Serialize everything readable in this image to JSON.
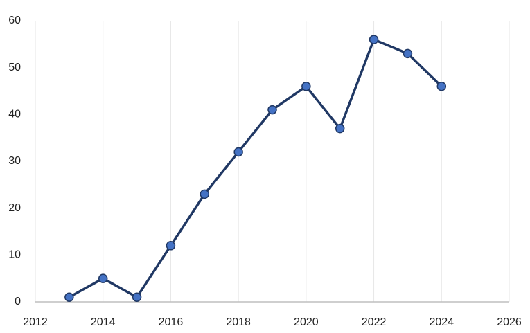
{
  "chart_data": {
    "type": "line",
    "x": [
      2013,
      2014,
      2015,
      2016,
      2017,
      2018,
      2019,
      2020,
      2021,
      2022,
      2023,
      2024
    ],
    "values": [
      1,
      5,
      1,
      12,
      23,
      32,
      41,
      46,
      37,
      56,
      53,
      46
    ],
    "color": "#203864",
    "marker_color": "#4472c4",
    "xlim": [
      2012,
      2026
    ],
    "xticks": [
      2012,
      2014,
      2016,
      2018,
      2020,
      2022,
      2024,
      2026
    ],
    "ylim": [
      0,
      60
    ],
    "yticks": [
      0,
      10,
      20,
      30,
      40,
      50,
      60
    ],
    "grid": "x"
  }
}
